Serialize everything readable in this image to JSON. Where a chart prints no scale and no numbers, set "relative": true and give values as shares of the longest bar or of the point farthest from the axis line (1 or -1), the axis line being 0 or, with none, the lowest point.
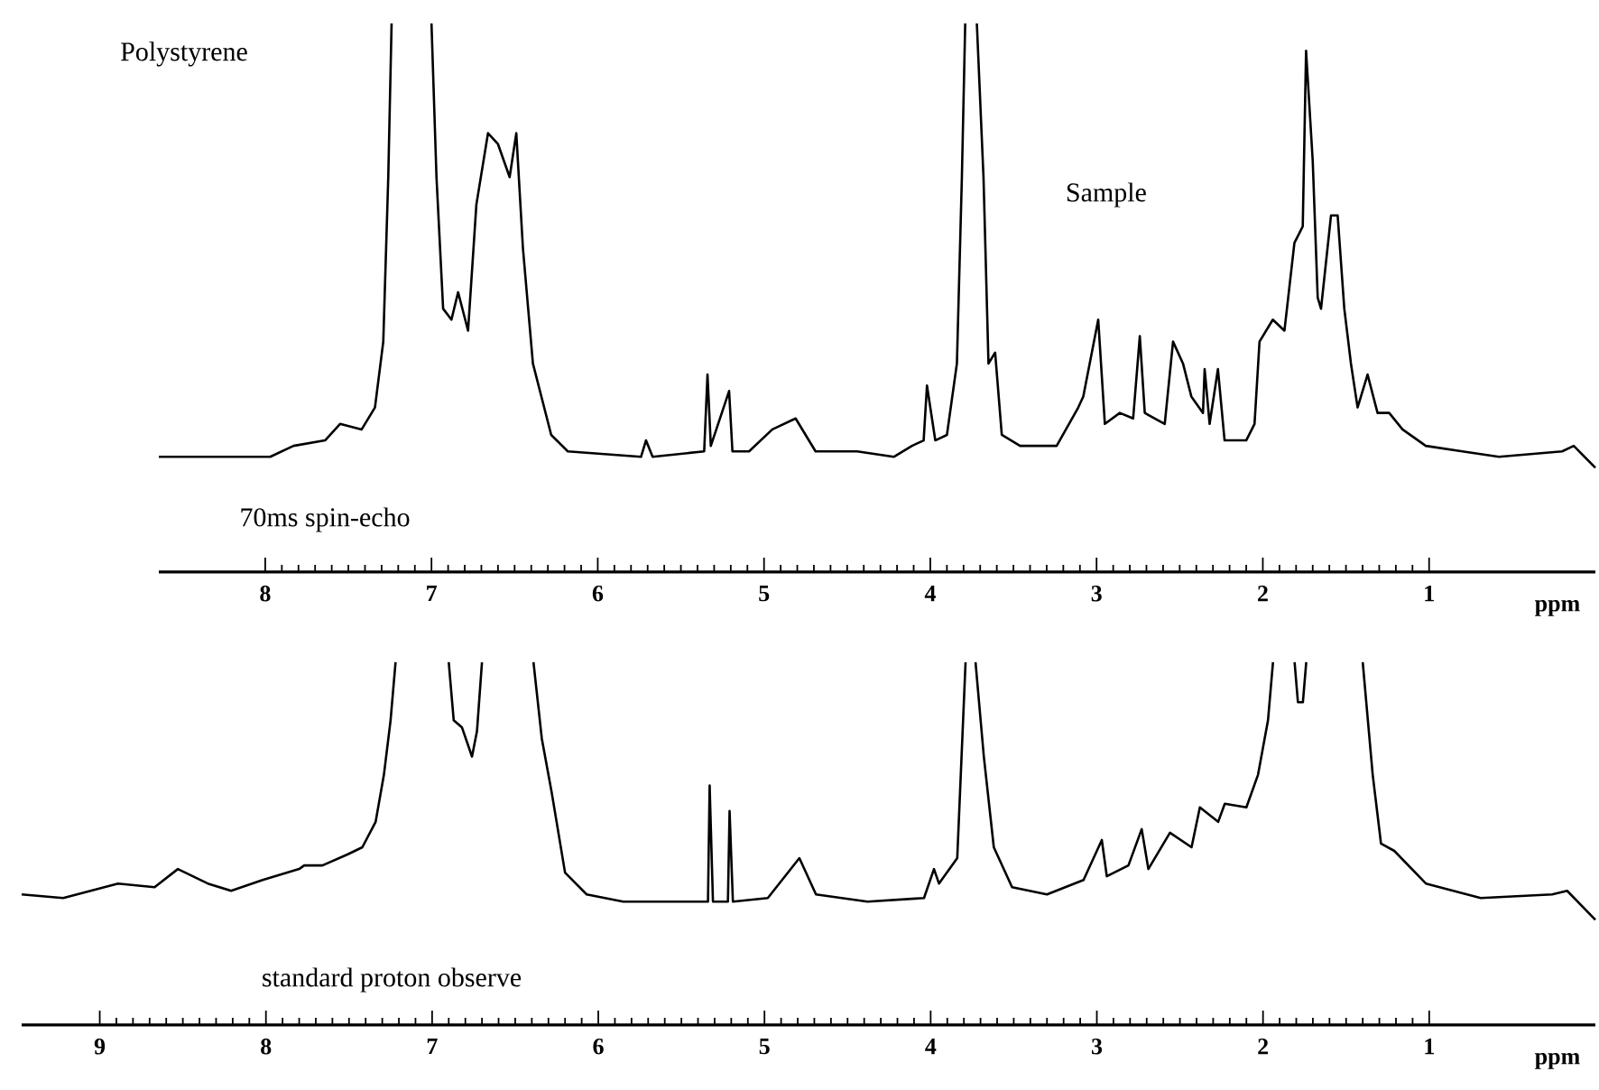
{
  "chart_data": [
    {
      "type": "line",
      "relative": true,
      "xlim": [
        8.64,
        0
      ],
      "xticks": [
        8,
        7,
        6,
        5,
        4,
        3,
        2,
        1
      ],
      "xlabel": "ppm",
      "annotations": [
        "Polystyrene",
        "Sample",
        "70ms spin-echo"
      ],
      "series": [
        {
          "color": "#000000",
          "x": [
            8.64,
            7.97,
            7.83,
            7.64,
            7.55,
            7.42,
            7.34,
            7.29,
            7.26,
            7.24,
            7.12,
            7.0,
            6.97,
            6.93,
            6.88,
            6.84,
            6.78,
            6.73,
            6.66,
            6.6,
            6.53,
            6.49,
            6.45,
            6.39,
            6.28,
            6.18,
            5.74,
            5.71,
            5.67,
            5.36,
            5.34,
            5.32,
            5.21,
            5.19,
            5.09,
            4.95,
            4.81,
            4.69,
            4.44,
            4.22,
            4.11,
            4.04,
            4.02,
            3.97,
            3.9,
            3.84,
            3.81,
            3.79,
            3.76,
            3.72,
            3.68,
            3.65,
            3.61,
            3.57,
            3.46,
            3.24,
            3.11,
            3.08,
            2.99,
            2.95,
            2.86,
            2.78,
            2.74,
            2.71,
            2.59,
            2.54,
            2.48,
            2.43,
            2.36,
            2.35,
            2.32,
            2.27,
            2.23,
            2.1,
            2.05,
            2.02,
            1.94,
            1.87,
            1.81,
            1.76,
            1.74,
            1.7,
            1.67,
            1.65,
            1.59,
            1.55,
            1.51,
            1.47,
            1.43,
            1.37,
            1.31,
            1.24,
            1.16,
            1.02,
            0.8,
            0.58,
            0.2,
            0.13,
            0.0
          ],
          "values": [
            0.21,
            0.21,
            0.23,
            0.24,
            0.27,
            0.26,
            0.3,
            0.42,
            0.72,
            1,
            null,
            1,
            0.72,
            0.48,
            0.46,
            0.51,
            0.44,
            0.67,
            0.8,
            0.78,
            0.72,
            0.8,
            0.59,
            0.38,
            0.25,
            0.22,
            0.21,
            0.24,
            0.21,
            0.22,
            0.36,
            0.23,
            0.33,
            0.22,
            0.22,
            0.26,
            0.28,
            0.22,
            0.22,
            0.21,
            0.23,
            0.24,
            0.34,
            0.24,
            0.25,
            0.38,
            0.72,
            1,
            null,
            1,
            0.72,
            0.38,
            0.4,
            0.25,
            0.23,
            0.23,
            0.3,
            0.32,
            0.46,
            0.27,
            0.29,
            0.28,
            0.43,
            0.29,
            0.27,
            0.42,
            0.38,
            0.32,
            0.29,
            0.37,
            0.27,
            0.37,
            0.24,
            0.24,
            0.27,
            0.42,
            0.46,
            0.44,
            0.6,
            0.63,
            0.95,
            0.75,
            0.5,
            0.48,
            0.65,
            0.65,
            0.48,
            0.38,
            0.3,
            0.36,
            0.29,
            0.29,
            0.26,
            0.23,
            0.22,
            0.21,
            0.22,
            0.23,
            0.19
          ]
        }
      ]
    },
    {
      "type": "line",
      "relative": true,
      "xlim": [
        9.47,
        0
      ],
      "xticks": [
        9,
        8,
        7,
        6,
        5,
        4,
        3,
        2,
        1
      ],
      "xlabel": "ppm",
      "annotations": [
        "standard proton observe"
      ],
      "series": [
        {
          "color": "#000000",
          "x": [
            9.47,
            9.22,
            8.89,
            8.67,
            8.53,
            8.35,
            8.21,
            8.02,
            7.8,
            7.77,
            7.66,
            7.51,
            7.42,
            7.34,
            7.29,
            7.25,
            7.22,
            7.1,
            6.9,
            6.87,
            6.82,
            6.76,
            6.73,
            6.7,
            6.55,
            6.39,
            6.34,
            6.28,
            6.2,
            6.07,
            5.85,
            5.58,
            5.34,
            5.33,
            5.31,
            5.22,
            5.21,
            5.19,
            4.98,
            4.79,
            4.69,
            4.38,
            4.04,
            3.98,
            3.95,
            3.84,
            3.79,
            3.76,
            3.73,
            3.68,
            3.62,
            3.51,
            3.3,
            3.08,
            2.97,
            2.94,
            2.81,
            2.73,
            2.69,
            2.56,
            2.43,
            2.38,
            2.27,
            2.23,
            2.1,
            2.03,
            1.97,
            1.94,
            1.88,
            1.81,
            1.79,
            1.76,
            1.74,
            1.58,
            1.4,
            1.34,
            1.29,
            1.21,
            1.02,
            0.69,
            0.26,
            0.17,
            0.0
          ],
          "values": [
            0.36,
            0.35,
            0.39,
            0.38,
            0.43,
            0.39,
            0.37,
            0.4,
            0.43,
            0.44,
            0.44,
            0.47,
            0.49,
            0.56,
            0.69,
            0.84,
            1,
            null,
            1,
            0.84,
            0.82,
            0.74,
            0.81,
            1,
            null,
            1,
            0.79,
            0.64,
            0.42,
            0.36,
            0.34,
            0.34,
            0.34,
            0.66,
            0.34,
            0.34,
            0.59,
            0.34,
            0.35,
            0.46,
            0.36,
            0.34,
            0.35,
            0.43,
            0.39,
            0.46,
            1,
            null,
            1,
            0.74,
            0.49,
            0.38,
            0.36,
            0.4,
            0.51,
            0.41,
            0.44,
            0.54,
            0.43,
            0.53,
            0.49,
            0.6,
            0.56,
            0.61,
            0.6,
            0.69,
            0.84,
            1,
            null,
            1,
            0.89,
            0.89,
            1,
            null,
            1,
            0.69,
            0.5,
            0.48,
            0.39,
            0.35,
            0.36,
            0.37,
            0.29
          ]
        }
      ]
    }
  ]
}
